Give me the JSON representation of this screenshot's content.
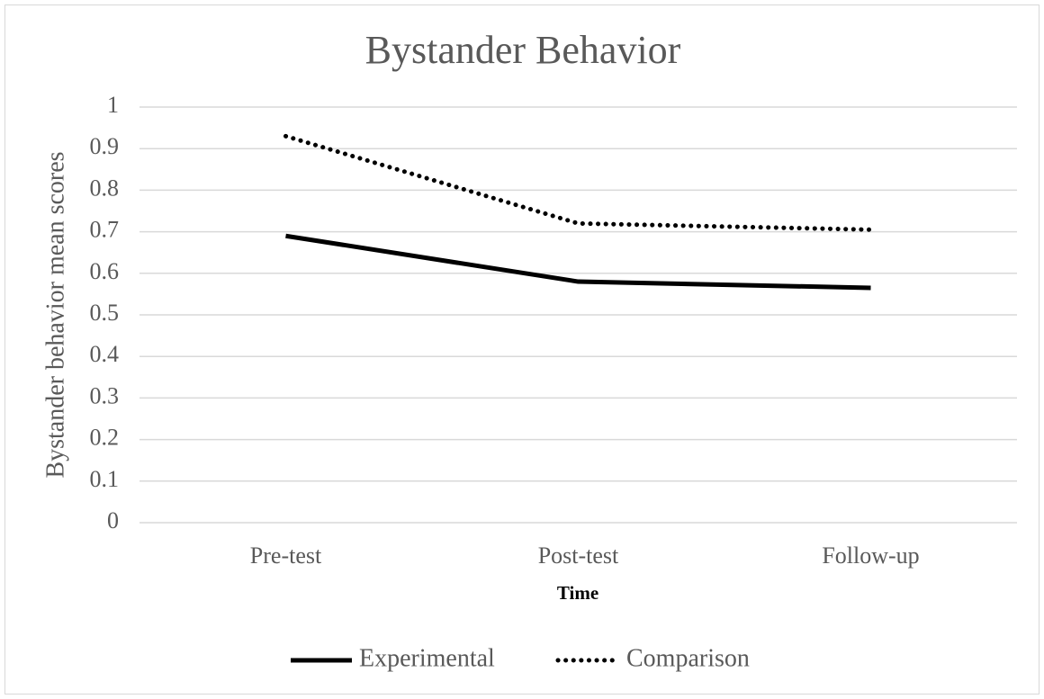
{
  "chart_data": {
    "type": "line",
    "title": "Bystander Behavior",
    "x_label": "Time",
    "y_label": "Bystander behavior mean scores",
    "categories": [
      "Pre-test",
      "Post-test",
      "Follow-up"
    ],
    "series": [
      {
        "name": "Experimental",
        "color": "#000000",
        "dash": "solid",
        "values": [
          0.69,
          0.58,
          0.565
        ]
      },
      {
        "name": "Comparison",
        "color": "#000000",
        "dash": "dotted",
        "values": [
          0.93,
          0.72,
          0.705
        ]
      }
    ],
    "ylim": [
      0,
      1
    ],
    "yticks": [
      0,
      0.1,
      0.2,
      0.3,
      0.4,
      0.5,
      0.6,
      0.7,
      0.8,
      0.9,
      1
    ],
    "grid": true,
    "legend": "bottom"
  }
}
